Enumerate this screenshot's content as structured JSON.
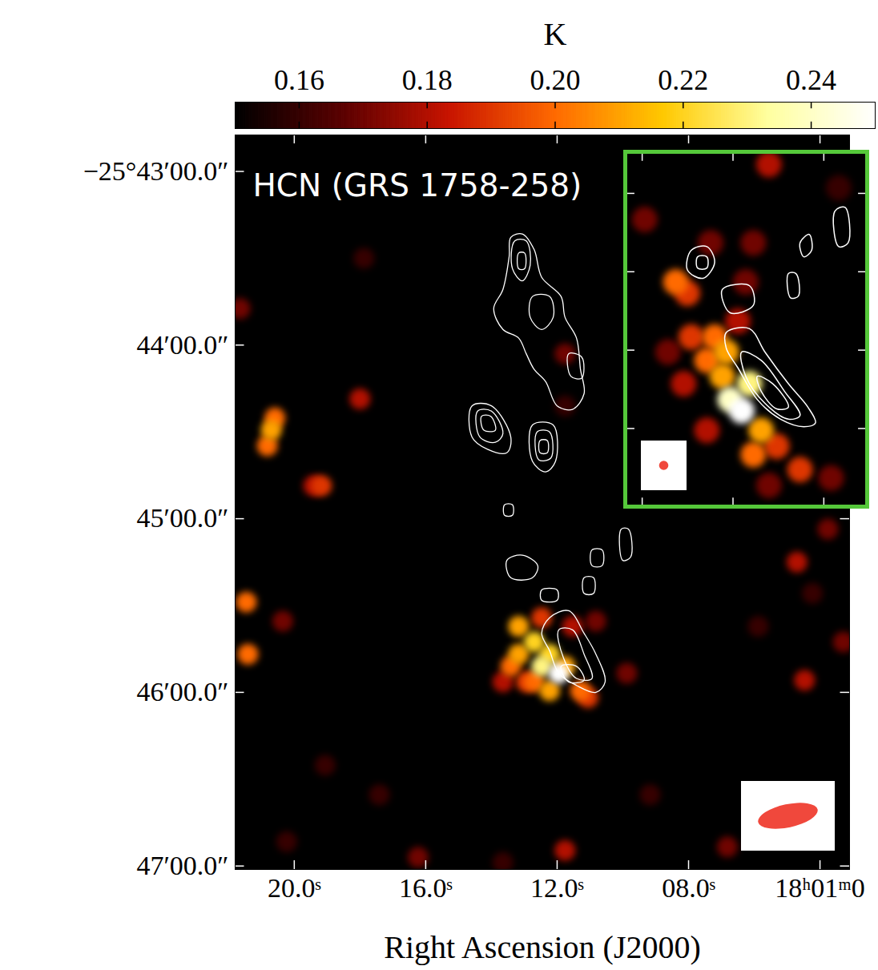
{
  "chart_data": [
    {
      "type": "heatmap",
      "title": "HCN (GRS 1758-258)",
      "xlabel": "Right Ascension (J2000)",
      "xlim": [
        21.8,
        3.1
      ],
      "ylim": [
        42.79,
        47.02
      ],
      "xticks": [
        {
          "value": 20,
          "label": "20.0ˢ"
        },
        {
          "value": 16,
          "label": "16.0ˢ"
        },
        {
          "value": 12,
          "label": "12.0ˢ"
        },
        {
          "value": 8,
          "label": "08.0ˢ"
        },
        {
          "value": 4,
          "label": "18ʰ01ᵐ0"
        }
      ],
      "yticks": [
        {
          "value": 43,
          "label": "−25°43′00.0″"
        },
        {
          "value": 44,
          "label": "44′00.0″"
        },
        {
          "value": 45,
          "label": "45′00.0″"
        },
        {
          "value": 46,
          "label": "46′00.0″"
        },
        {
          "value": 47,
          "label": "47′00.0″"
        }
      ],
      "colorbar": {
        "label": "K",
        "range": [
          0.15,
          0.25
        ],
        "ticks": [
          0.16,
          0.18,
          {
            "value": 0.2,
            "label": "0.20"
          },
          0.22,
          0.24
        ],
        "colors": [
          "#000000",
          "#5a0000",
          "#c81400",
          "#ff6a00",
          "#ffc800",
          "#ffffa0",
          "#ffffff"
        ]
      },
      "cells": {
        "x": [
          11.76,
          4.23,
          5.88,
          13.65,
          20.23,
          17.88,
          19.06,
          17.41,
          9.17,
          21.65,
          11.76,
          20.35,
          10.82,
          9.88,
          3.29,
          16.23,
          6.82,
          3.76,
          19.41,
          18.0,
          11.53,
          13.65,
          4.7,
          4.47,
          11.76,
          19.17,
          12.94,
          11.06,
          12.47,
          20.59,
          20.82,
          21.46,
          21.41,
          13.41,
          11.29,
          12.7,
          20.7,
          13.17,
          12.23,
          11.76,
          13.17,
          12.7,
          12.23,
          12.47,
          11.95
        ],
        "y": [
          44.35,
          45.43,
          45.62,
          46.98,
          46.86,
          43.5,
          46.42,
          46.59,
          46.59,
          43.79,
          44.05,
          45.59,
          45.59,
          45.89,
          45.71,
          46.95,
          46.89,
          45.06,
          44.81,
          44.31,
          45.62,
          45.94,
          45.25,
          45.93,
          46.91,
          44.81,
          45.94,
          46.03,
          45.57,
          44.42,
          44.58,
          45.48,
          45.78,
          45.85,
          45.99,
          45.94,
          44.49,
          45.62,
          45.99,
          45.85,
          45.78,
          45.71,
          45.78,
          45.85,
          45.89
        ],
        "values": [
          0.16,
          0.16,
          0.16,
          0.16,
          0.16,
          0.16,
          0.16,
          0.16,
          0.16,
          0.17,
          0.17,
          0.17,
          0.17,
          0.17,
          0.17,
          0.17,
          0.17,
          0.17,
          0.18,
          0.18,
          0.18,
          0.18,
          0.18,
          0.18,
          0.18,
          0.19,
          0.19,
          0.19,
          0.19,
          0.2,
          0.2,
          0.2,
          0.2,
          0.2,
          0.2,
          0.2,
          0.21,
          0.21,
          0.21,
          0.21,
          0.21,
          0.22,
          0.22,
          0.23,
          0.25
        ]
      },
      "contours": [
        [
          [
            13.41,
            43.38
          ],
          [
            13.06,
            43.36
          ],
          [
            12.7,
            43.45
          ],
          [
            12.47,
            43.61
          ],
          [
            11.88,
            43.72
          ],
          [
            11.76,
            43.84
          ],
          [
            11.41,
            43.96
          ],
          [
            11.29,
            44.14
          ],
          [
            11.18,
            44.28
          ],
          [
            11.53,
            44.37
          ],
          [
            12.0,
            44.35
          ],
          [
            12.35,
            44.21
          ],
          [
            12.7,
            44.14
          ],
          [
            12.94,
            44.05
          ],
          [
            13.17,
            43.96
          ],
          [
            13.65,
            43.91
          ],
          [
            13.93,
            43.79
          ],
          [
            13.65,
            43.68
          ],
          [
            13.46,
            43.49
          ]
        ],
        [
          [
            13.29,
            43.4
          ],
          [
            12.94,
            43.4
          ],
          [
            12.82,
            43.54
          ],
          [
            13.06,
            43.63
          ],
          [
            13.36,
            43.56
          ]
        ],
        [
          [
            13.17,
            43.47
          ],
          [
            12.99,
            43.47
          ],
          [
            12.99,
            43.56
          ],
          [
            13.17,
            43.56
          ]
        ],
        [
          [
            12.75,
            43.72
          ],
          [
            12.23,
            43.72
          ],
          [
            12.12,
            43.84
          ],
          [
            12.47,
            43.91
          ],
          [
            12.82,
            43.84
          ]
        ],
        [
          [
            11.65,
            44.05
          ],
          [
            11.25,
            44.07
          ],
          [
            11.25,
            44.19
          ],
          [
            11.58,
            44.18
          ]
        ],
        [
          [
            14.59,
            44.35
          ],
          [
            14.0,
            44.35
          ],
          [
            13.41,
            44.53
          ],
          [
            13.53,
            44.62
          ],
          [
            14.12,
            44.6
          ],
          [
            14.59,
            44.53
          ]
        ],
        [
          [
            14.42,
            44.38
          ],
          [
            14.0,
            44.38
          ],
          [
            13.65,
            44.51
          ],
          [
            13.88,
            44.56
          ],
          [
            14.35,
            44.53
          ]
        ],
        [
          [
            14.3,
            44.41
          ],
          [
            14.02,
            44.41
          ],
          [
            13.88,
            44.49
          ],
          [
            14.23,
            44.49
          ]
        ],
        [
          [
            12.75,
            44.46
          ],
          [
            12.12,
            44.46
          ],
          [
            12.05,
            44.67
          ],
          [
            12.35,
            44.73
          ],
          [
            12.75,
            44.67
          ]
        ],
        [
          [
            12.61,
            44.5
          ],
          [
            12.23,
            44.5
          ],
          [
            12.19,
            44.65
          ],
          [
            12.56,
            44.66
          ]
        ],
        [
          [
            12.52,
            44.55
          ],
          [
            12.3,
            44.55
          ],
          [
            12.3,
            44.62
          ],
          [
            12.52,
            44.62
          ]
        ],
        [
          [
            13.6,
            44.92
          ],
          [
            13.36,
            44.92
          ],
          [
            13.36,
            44.98
          ],
          [
            13.6,
            44.98
          ]
        ],
        [
          [
            12.23,
            45.57
          ],
          [
            11.65,
            45.53
          ],
          [
            11.18,
            45.66
          ],
          [
            10.82,
            45.78
          ],
          [
            10.54,
            45.94
          ],
          [
            10.82,
            46.0
          ],
          [
            11.41,
            45.96
          ],
          [
            11.95,
            45.89
          ],
          [
            12.23,
            45.76
          ],
          [
            12.47,
            45.66
          ]
        ],
        [
          [
            11.95,
            45.64
          ],
          [
            11.53,
            45.64
          ],
          [
            11.18,
            45.78
          ],
          [
            10.94,
            45.92
          ],
          [
            11.41,
            45.92
          ],
          [
            11.81,
            45.8
          ]
        ],
        [
          [
            11.88,
            45.85
          ],
          [
            11.41,
            45.85
          ],
          [
            11.18,
            45.93
          ],
          [
            11.65,
            45.94
          ]
        ],
        [
          [
            13.53,
            45.24
          ],
          [
            13.06,
            45.21
          ],
          [
            12.59,
            45.27
          ],
          [
            12.75,
            45.34
          ],
          [
            13.41,
            45.34
          ]
        ],
        [
          [
            12.47,
            45.41
          ],
          [
            12.0,
            45.41
          ],
          [
            12.0,
            45.47
          ],
          [
            12.47,
            45.47
          ]
        ],
        [
          [
            11.18,
            45.34
          ],
          [
            10.89,
            45.34
          ],
          [
            10.89,
            45.43
          ],
          [
            11.18,
            45.43
          ]
        ],
        [
          [
            10.94,
            45.18
          ],
          [
            10.63,
            45.18
          ],
          [
            10.63,
            45.27
          ],
          [
            10.94,
            45.27
          ]
        ],
        [
          [
            10.05,
            45.06
          ],
          [
            9.83,
            45.06
          ],
          [
            9.76,
            45.22
          ],
          [
            10.0,
            45.24
          ]
        ]
      ],
      "beam": {
        "major": 21,
        "minor": 8,
        "color": "#f0483c"
      }
    },
    {
      "type": "heatmap",
      "color": "#55c83a",
      "xlim": [
        12.58,
        11.27
      ],
      "ylim": [
        45.618,
        45.994
      ],
      "xticks": [
        12.5,
        12,
        11.5
      ],
      "yticks": [
        45.66,
        45.744,
        45.828,
        45.912
      ],
      "tick_labels": false,
      "cells": {
        "x": [
          11.418,
          12.358,
          11.802,
          11.46,
          11.93,
          12.123,
          11.888,
          12.486,
          12.144,
          12.272,
          11.973,
          11.802,
          12.23,
          12.251,
          11.759,
          11.631,
          12.144,
          12.101,
          12.315,
          11.888,
          12.059,
          11.845,
          12.037,
          11.909,
          12.016,
          11.952
        ],
        "y": [
          45.654,
          45.83,
          45.973,
          45.965,
          45.755,
          45.713,
          45.713,
          45.688,
          45.914,
          45.864,
          45.797,
          45.629,
          45.814,
          45.767,
          45.931,
          45.956,
          45.839,
          45.814,
          45.755,
          45.94,
          45.856,
          45.914,
          45.83,
          45.864,
          45.881,
          45.893
        ],
        "values": [
          0.16,
          0.17,
          0.17,
          0.17,
          0.17,
          0.17,
          0.17,
          0.17,
          0.18,
          0.18,
          0.18,
          0.18,
          0.19,
          0.19,
          0.19,
          0.19,
          0.2,
          0.2,
          0.2,
          0.2,
          0.21,
          0.21,
          0.21,
          0.23,
          0.24,
          0.25
        ]
      },
      "contours": [
        [
          [
            12.037,
            45.809
          ],
          [
            11.909,
            45.805
          ],
          [
            11.824,
            45.83
          ],
          [
            11.695,
            45.864
          ],
          [
            11.588,
            45.889
          ],
          [
            11.546,
            45.906
          ],
          [
            11.61,
            45.91
          ],
          [
            11.738,
            45.902
          ],
          [
            11.866,
            45.881
          ],
          [
            11.973,
            45.847
          ],
          [
            12.037,
            45.826
          ]
        ],
        [
          [
            11.952,
            45.83
          ],
          [
            11.845,
            45.839
          ],
          [
            11.717,
            45.872
          ],
          [
            11.631,
            45.898
          ],
          [
            11.695,
            45.902
          ],
          [
            11.824,
            45.885
          ],
          [
            11.93,
            45.856
          ]
        ],
        [
          [
            11.866,
            45.856
          ],
          [
            11.781,
            45.864
          ],
          [
            11.695,
            45.889
          ],
          [
            11.759,
            45.891
          ],
          [
            11.845,
            45.872
          ]
        ],
        [
          [
            12.23,
            45.721
          ],
          [
            12.144,
            45.717
          ],
          [
            12.101,
            45.734
          ],
          [
            12.165,
            45.751
          ],
          [
            12.251,
            45.742
          ]
        ],
        [
          [
            12.195,
            45.728
          ],
          [
            12.144,
            45.728
          ],
          [
            12.144,
            45.74
          ],
          [
            12.195,
            45.74
          ]
        ],
        [
          [
            12.059,
            45.763
          ],
          [
            11.909,
            45.759
          ],
          [
            11.888,
            45.78
          ],
          [
            12.016,
            45.788
          ]
        ],
        [
          [
            11.695,
            45.746
          ],
          [
            11.653,
            45.746
          ],
          [
            11.64,
            45.77
          ],
          [
            11.683,
            45.772
          ]
        ],
        [
          [
            11.631,
            45.713
          ],
          [
            11.58,
            45.704
          ],
          [
            11.567,
            45.721
          ],
          [
            11.61,
            45.728
          ]
        ],
        [
          [
            11.439,
            45.679
          ],
          [
            11.383,
            45.675
          ],
          [
            11.366,
            45.713
          ],
          [
            11.418,
            45.717
          ]
        ]
      ],
      "beam": {
        "major": 0.6,
        "minor": 0.6,
        "color": "#f0483c"
      }
    }
  ]
}
